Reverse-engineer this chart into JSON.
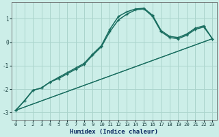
{
  "xlabel": "Humidex (Indice chaleur)",
  "background_color": "#cceee8",
  "grid_color": "#aad4cc",
  "line_color": "#1a6e60",
  "xlim": [
    -0.5,
    23.5
  ],
  "ylim": [
    -3.3,
    1.7
  ],
  "yticks": [
    -3,
    -2,
    -1,
    0,
    1
  ],
  "xticks": [
    0,
    1,
    2,
    3,
    4,
    5,
    6,
    7,
    8,
    9,
    10,
    11,
    12,
    13,
    14,
    15,
    16,
    17,
    18,
    19,
    20,
    21,
    22,
    23
  ],
  "series": [
    {
      "x": [
        0,
        23
      ],
      "y": [
        -2.9,
        0.15
      ],
      "marker": null,
      "linewidth": 0.9
    },
    {
      "x": [
        0,
        23
      ],
      "y": [
        -2.9,
        0.15
      ],
      "marker": null,
      "linewidth": 0.9
    },
    {
      "x": [
        0,
        1,
        2,
        3,
        4,
        5,
        6,
        7,
        8,
        9,
        10,
        11,
        12,
        13,
        14,
        15,
        16,
        17,
        18,
        19,
        20,
        21,
        22,
        23
      ],
      "y": [
        -2.9,
        -2.5,
        -2.05,
        -1.95,
        -1.7,
        -1.5,
        -1.3,
        -1.1,
        -0.9,
        -0.5,
        -0.15,
        0.55,
        1.1,
        1.3,
        1.42,
        1.45,
        1.15,
        0.5,
        0.25,
        0.2,
        0.35,
        0.6,
        0.7,
        0.15
      ],
      "marker": "+",
      "linewidth": 1.1
    },
    {
      "x": [
        0,
        1,
        2,
        3,
        4,
        5,
        6,
        7,
        8,
        9,
        10,
        11,
        12,
        13,
        14,
        15,
        16,
        17,
        18,
        19,
        20,
        21,
        22,
        23
      ],
      "y": [
        -2.9,
        -2.5,
        -2.05,
        -1.95,
        -1.7,
        -1.55,
        -1.35,
        -1.15,
        -0.95,
        -0.55,
        -0.2,
        0.45,
        0.95,
        1.2,
        1.38,
        1.42,
        1.1,
        0.45,
        0.2,
        0.15,
        0.3,
        0.55,
        0.65,
        0.15
      ],
      "marker": "+",
      "linewidth": 1.1
    }
  ]
}
